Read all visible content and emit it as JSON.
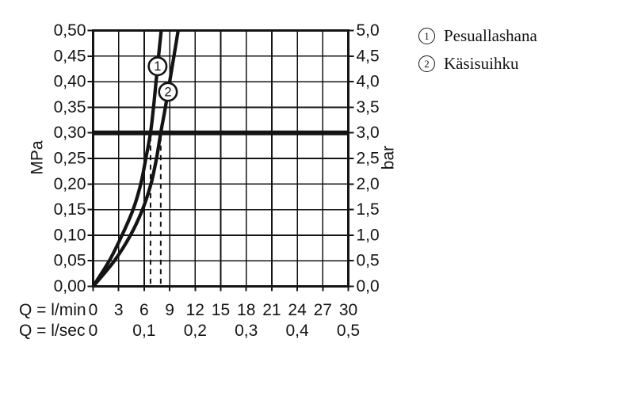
{
  "page": {
    "background": "#ffffff",
    "ink_color": "#141414"
  },
  "legend": {
    "items": [
      {
        "number": "1",
        "label": "Pesuallashana"
      },
      {
        "number": "2",
        "label": "Käsisuihku"
      }
    ]
  },
  "chart_data": {
    "type": "line",
    "title": "",
    "grid": true,
    "x_axis_primary": {
      "label": "Q = l/min",
      "min": 0,
      "max": 30,
      "step": 3,
      "tick_labels": [
        "0",
        "3",
        "6",
        "9",
        "12",
        "15",
        "18",
        "21",
        "24",
        "27",
        "30"
      ]
    },
    "x_axis_secondary": {
      "label": "Q = l/sec",
      "tick_labels": [
        "0",
        "0,1",
        "0,2",
        "0,3",
        "0,4",
        "0,5"
      ],
      "at_lmin": [
        0,
        6,
        12,
        18,
        24,
        30
      ]
    },
    "y_axis_left": {
      "label": "MPa",
      "min": 0,
      "max": 0.5,
      "step": 0.05,
      "tick_labels": [
        "0,50",
        "0,45",
        "0,40",
        "0,35",
        "0,30",
        "0,25",
        "0,20",
        "0,15",
        "0,10",
        "0,05",
        "0,00"
      ]
    },
    "y_axis_right": {
      "label": "bar",
      "min": 0,
      "max": 5,
      "step": 0.5,
      "tick_labels": [
        "5,0",
        "4,5",
        "4,0",
        "3,5",
        "3,0",
        "2,5",
        "2,0",
        "1,5",
        "1,0",
        "0,5",
        "0,0"
      ]
    },
    "reference_line": {
      "MPa": 0.3,
      "bar": 3.0
    },
    "dashed_guides_lmin": [
      6.75,
      7.95
    ],
    "series": [
      {
        "name": "Pesuallashana",
        "marker": "1",
        "marker_at_MPa": 0.43,
        "points_MPa": [
          0,
          0.05,
          0.1,
          0.15,
          0.2,
          0.25,
          0.3,
          0.35,
          0.4,
          0.45,
          0.5
        ],
        "points_lmin": [
          0,
          1.9,
          3.4,
          4.7,
          5.6,
          6.2,
          6.75,
          7.1,
          7.4,
          7.7,
          8.0
        ]
      },
      {
        "name": "Käsisuihku",
        "marker": "2",
        "marker_at_MPa": 0.38,
        "points_MPa": [
          0,
          0.05,
          0.1,
          0.15,
          0.2,
          0.25,
          0.3,
          0.35,
          0.4,
          0.45,
          0.5
        ],
        "points_lmin": [
          0,
          2.5,
          4.4,
          5.8,
          6.8,
          7.45,
          7.95,
          8.5,
          9.0,
          9.5,
          10.0
        ]
      }
    ]
  }
}
